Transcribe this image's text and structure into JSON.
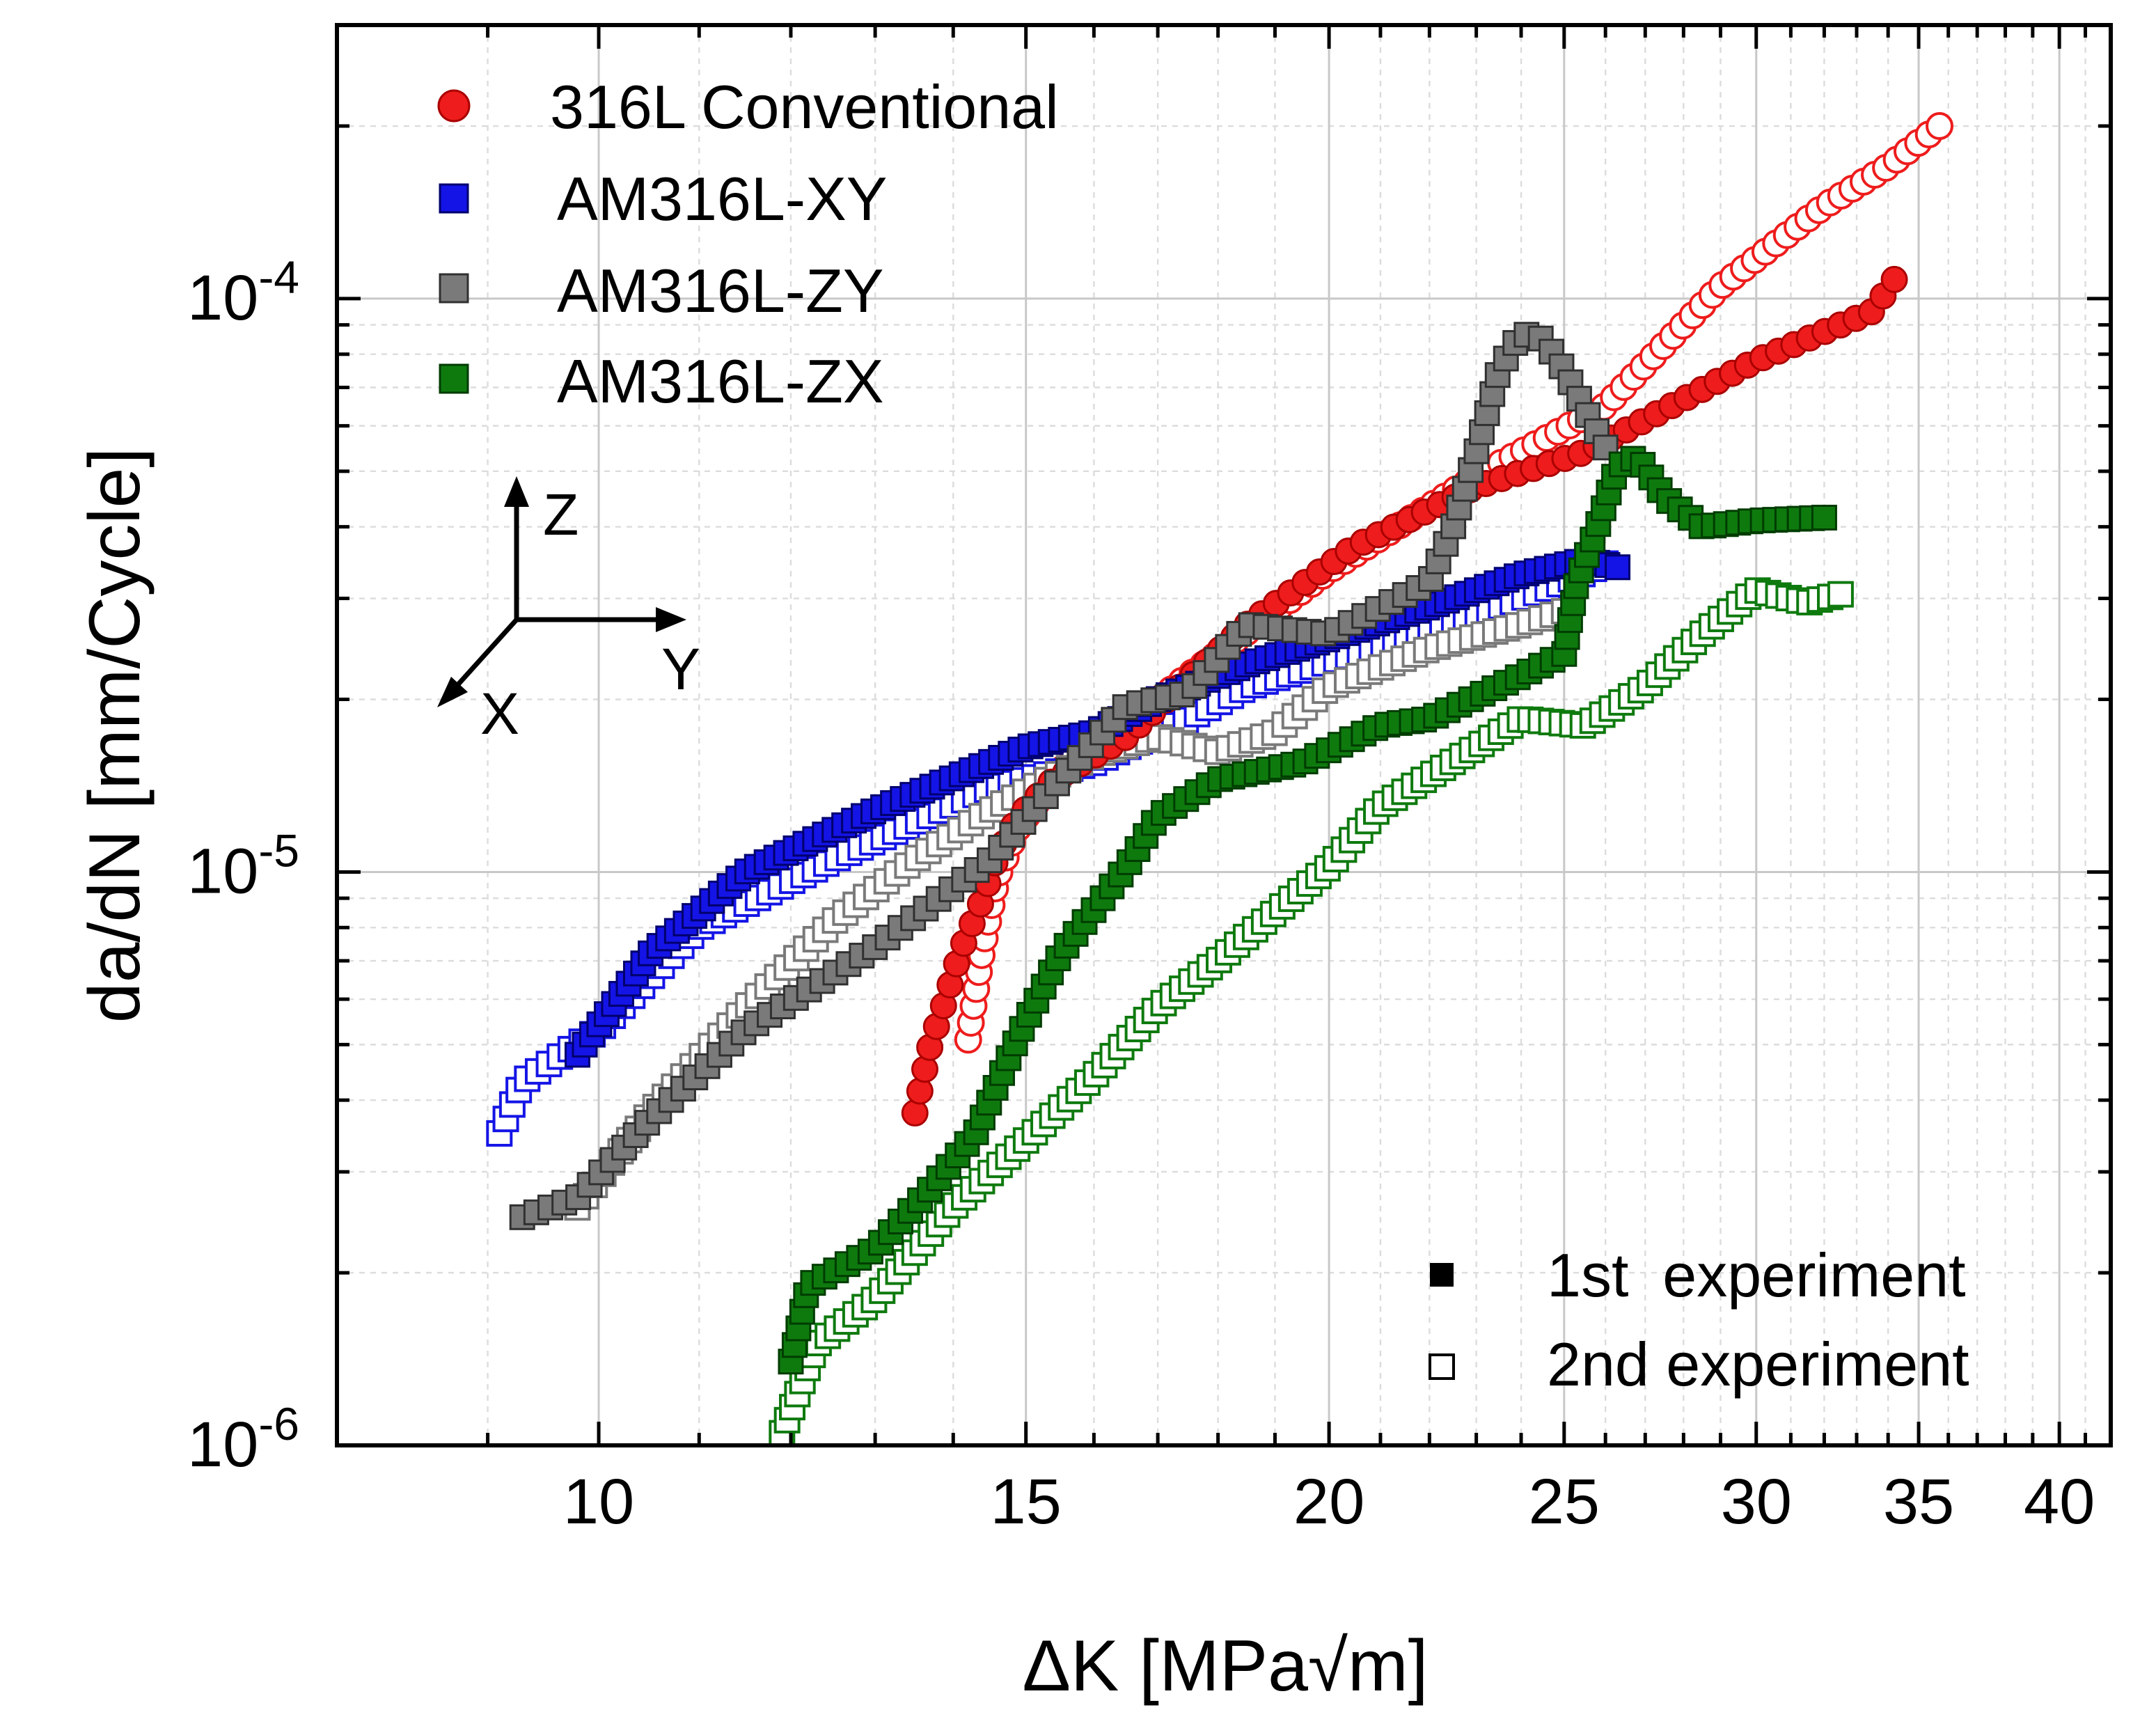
{
  "chart_data": {
    "type": "scatter",
    "xscale": "log",
    "yscale": "log",
    "xlabel": "ΔK [MPa√m]",
    "ylabel": "da/dN [mm/Cycle]",
    "xlim": [
      7.8,
      42
    ],
    "ylim": [
      1e-06,
      0.0003
    ],
    "grid": true,
    "xticks": [
      10,
      15,
      20,
      25,
      30,
      35,
      40
    ],
    "xtick_labels": [
      "10",
      "15",
      "20",
      "25",
      "30",
      "35",
      "40"
    ],
    "yticks": [
      1e-06,
      1e-05,
      0.0001
    ],
    "ytick_labels": [
      {
        "base": "10",
        "exp": "-6"
      },
      {
        "base": "10",
        "exp": "-5"
      },
      {
        "base": "10",
        "exp": "-4"
      }
    ],
    "legend_position": "top-left",
    "legend": [
      {
        "label": "316L Conventional",
        "color": "#ee1c1c",
        "marker": "circle"
      },
      {
        "label": "AM316L-XY",
        "color": "#1414e6",
        "marker": "square"
      },
      {
        "label": "AM316L-ZY",
        "color": "#7a7a7a",
        "marker": "square"
      },
      {
        "label": "AM316L-ZX",
        "color": "#0e7a0e",
        "marker": "square"
      }
    ],
    "legend2_position": "bottom-right",
    "legend2": [
      {
        "label": "1st  experiment",
        "fill": "filled"
      },
      {
        "label": "2nd experiment",
        "fill": "open"
      }
    ],
    "axes_annotation": {
      "z": "Z",
      "y": "Y",
      "x": "X"
    },
    "series": [
      {
        "name": "316L Conventional",
        "experiment": "1st",
        "color": "#ee1c1c",
        "edge": "#aa0000",
        "marker": "circle",
        "filled": true,
        "count": 75,
        "anchors": [
          [
            13.5,
            3.8e-06
          ],
          [
            13.7,
            5e-06
          ],
          [
            13.9,
            6e-06
          ],
          [
            14.1,
            7.3e-06
          ],
          [
            14.4,
            9e-06
          ],
          [
            14.6,
            1.07e-05
          ],
          [
            14.9,
            1.25e-05
          ],
          [
            15.4,
            1.45e-05
          ],
          [
            16.5,
            1.72e-05
          ],
          [
            18.5,
            2.7e-05
          ],
          [
            20.5,
            3.7e-05
          ],
          [
            23,
            4.7e-05
          ],
          [
            25.5,
            5.4e-05
          ],
          [
            30,
            7.8e-05
          ],
          [
            33.5,
            9.5e-05
          ],
          [
            34.2,
            0.000108
          ]
        ]
      },
      {
        "name": "316L Conventional",
        "experiment": "2nd",
        "color": "#ee1c1c",
        "edge": "#ee1c1c",
        "marker": "circle",
        "filled": false,
        "count": 100,
        "anchors": [
          [
            14.2,
            5.1e-06
          ],
          [
            14.4,
            7.4e-06
          ],
          [
            14.6,
            9.8e-06
          ],
          [
            14.9,
            1.2e-05
          ],
          [
            15.6,
            1.55e-05
          ],
          [
            16.5,
            1.8e-05
          ],
          [
            17.5,
            2.2e-05
          ],
          [
            20,
            3.35e-05
          ],
          [
            23,
            4.9e-05
          ],
          [
            26,
            6.5e-05
          ],
          [
            29,
            0.000105
          ],
          [
            32,
            0.000145
          ],
          [
            34,
            0.00017
          ],
          [
            35.7,
            0.0002
          ]
        ]
      },
      {
        "name": "AM316L-XY",
        "experiment": "1st",
        "color": "#1414e6",
        "edge": "#00006e",
        "marker": "square",
        "filled": true,
        "count": 110,
        "anchors": [
          [
            9.8,
            4.8e-06
          ],
          [
            10.5,
            7.2e-06
          ],
          [
            11.5,
            1e-05
          ],
          [
            13,
            1.28e-05
          ],
          [
            15,
            1.65e-05
          ],
          [
            16,
            1.75e-05
          ],
          [
            17,
            2e-05
          ],
          [
            18.5,
            2.3e-05
          ],
          [
            20,
            2.55e-05
          ],
          [
            22,
            2.9e-05
          ],
          [
            24,
            3.3e-05
          ],
          [
            25.5,
            3.5e-05
          ],
          [
            26.3,
            3.4e-05
          ]
        ]
      },
      {
        "name": "AM316L-XY",
        "experiment": "2nd",
        "color": "#1414e6",
        "edge": "#1414e6",
        "marker": "square",
        "filled": false,
        "count": 100,
        "anchors": [
          [
            9.1,
            3.5e-06
          ],
          [
            9.3,
            4.3e-06
          ],
          [
            10,
            5.3e-06
          ],
          [
            11,
            8e-06
          ],
          [
            12.5,
            1.05e-05
          ],
          [
            14.5,
            1.4e-05
          ],
          [
            16,
            1.55e-05
          ],
          [
            17.5,
            1.85e-05
          ],
          [
            18.5,
            2.1e-05
          ],
          [
            20.5,
            2.4e-05
          ],
          [
            23,
            2.8e-05
          ],
          [
            25,
            3.2e-05
          ],
          [
            26,
            3.45e-05
          ]
        ]
      },
      {
        "name": "AM316L-ZY",
        "experiment": "1st",
        "color": "#7a7a7a",
        "edge": "#303030",
        "marker": "square",
        "filled": true,
        "count": 95,
        "anchors": [
          [
            9.3,
            2.5e-06
          ],
          [
            9.8,
            2.7e-06
          ],
          [
            10.5,
            3.7e-06
          ],
          [
            11.5,
            5.3e-06
          ],
          [
            13,
            7.4e-06
          ],
          [
            14.5,
            1.05e-05
          ],
          [
            15.5,
            1.45e-05
          ],
          [
            16.5,
            1.95e-05
          ],
          [
            17.5,
            2.05e-05
          ],
          [
            18.5,
            2.7e-05
          ],
          [
            20,
            2.6e-05
          ],
          [
            22,
            3.2e-05
          ],
          [
            22.5,
            4e-05
          ],
          [
            23,
            5.4e-05
          ],
          [
            23.5,
            7.5e-05
          ],
          [
            24,
            8.7e-05
          ],
          [
            24.5,
            8.5e-05
          ],
          [
            25,
            7.5e-05
          ],
          [
            25.5,
            6.4e-05
          ],
          [
            26,
            5.5e-05
          ]
        ]
      },
      {
        "name": "AM316L-ZY",
        "experiment": "2nd",
        "color": "#7a7a7a",
        "edge": "#7a7a7a",
        "marker": "square",
        "filled": false,
        "count": 95,
        "anchors": [
          [
            9.8,
            2.6e-06
          ],
          [
            10.5,
            3.8e-06
          ],
          [
            11.5,
            5.8e-06
          ],
          [
            12.5,
            8.2e-06
          ],
          [
            13.5,
            1.05e-05
          ],
          [
            14.5,
            1.28e-05
          ],
          [
            16,
            1.6e-05
          ],
          [
            17,
            1.72e-05
          ],
          [
            18,
            1.62e-05
          ],
          [
            19,
            1.75e-05
          ],
          [
            20,
            2.1e-05
          ],
          [
            22,
            2.45e-05
          ],
          [
            24,
            2.7e-05
          ],
          [
            25,
            2.85e-05
          ]
        ]
      },
      {
        "name": "AM316L-ZX",
        "experiment": "1st",
        "color": "#0e7a0e",
        "edge": "#003c00",
        "marker": "square",
        "filled": true,
        "count": 110,
        "anchors": [
          [
            12,
            1.4e-06
          ],
          [
            12.2,
            1.9e-06
          ],
          [
            13,
            2.2e-06
          ],
          [
            13.7,
            2.8e-06
          ],
          [
            14.3,
            3.5e-06
          ],
          [
            14.9,
            5.2e-06
          ],
          [
            15.5,
            7.2e-06
          ],
          [
            16.5,
            1.02e-05
          ],
          [
            17,
            1.25e-05
          ],
          [
            18,
            1.45e-05
          ],
          [
            19.5,
            1.55e-05
          ],
          [
            21,
            1.8e-05
          ],
          [
            22,
            1.85e-05
          ],
          [
            24,
            2.2e-05
          ],
          [
            25,
            2.4e-05
          ],
          [
            25.3,
            3.2e-05
          ],
          [
            25.8,
            4e-05
          ],
          [
            26.3,
            5.1e-05
          ],
          [
            26.8,
            5.3e-05
          ],
          [
            27.5,
            4.5e-05
          ],
          [
            28.5,
            4e-05
          ],
          [
            30,
            4.1e-05
          ],
          [
            32,
            4.15e-05
          ]
        ]
      },
      {
        "name": "AM316L-ZX",
        "experiment": "2nd",
        "color": "#0e7a0e",
        "edge": "#0e9a0e",
        "marker": "square",
        "filled": false,
        "count": 120,
        "anchors": [
          [
            11.9,
            1.05e-06
          ],
          [
            12.3,
            1.5e-06
          ],
          [
            13,
            1.8e-06
          ],
          [
            14,
            2.6e-06
          ],
          [
            15,
            3.4e-06
          ],
          [
            16,
            4.4e-06
          ],
          [
            17,
            5.8e-06
          ],
          [
            18,
            7e-06
          ],
          [
            19,
            8.5e-06
          ],
          [
            20,
            1.02e-05
          ],
          [
            21,
            1.3e-05
          ],
          [
            23,
            1.65e-05
          ],
          [
            24,
            1.85e-05
          ],
          [
            25.5,
            1.8e-05
          ],
          [
            27,
            2.1e-05
          ],
          [
            28.5,
            2.6e-05
          ],
          [
            30,
            3.1e-05
          ],
          [
            31.5,
            2.95e-05
          ],
          [
            32.5,
            3.05e-05
          ]
        ]
      }
    ]
  }
}
